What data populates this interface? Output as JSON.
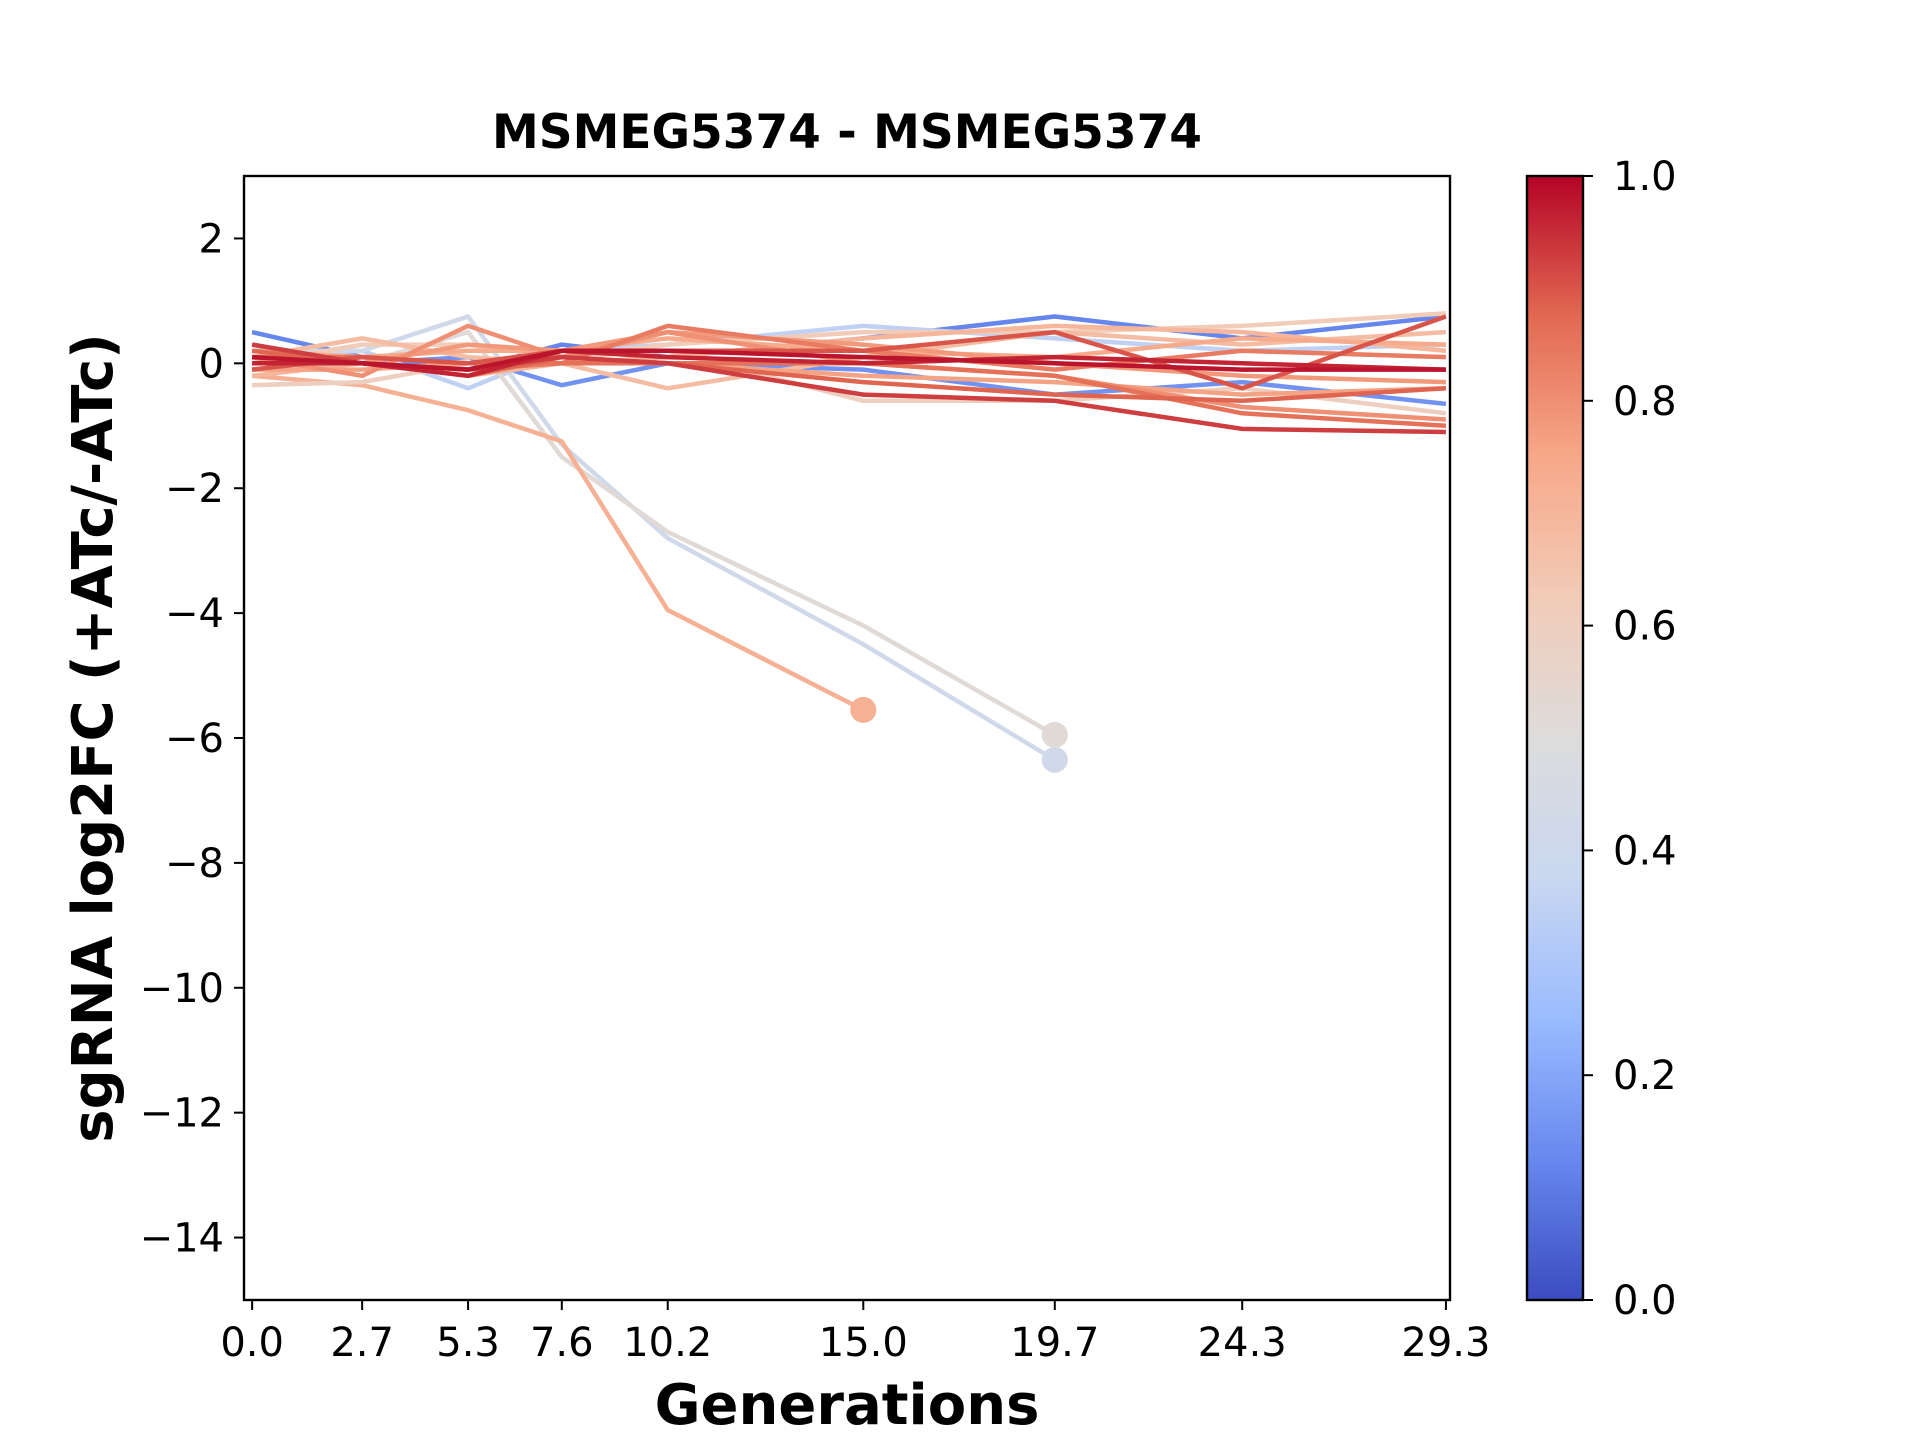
{
  "chart_data": {
    "type": "line",
    "title": "MSMEG5374 - MSMEG5374",
    "xlabel": "Generations",
    "ylabel": "sgRNA log2FC (+ATc/-ATc)",
    "x_ticks": [
      0.0,
      2.7,
      5.3,
      7.6,
      10.2,
      15.0,
      19.7,
      24.3,
      29.3
    ],
    "x_tick_labels": [
      "0.0",
      "2.7",
      "5.3",
      "7.6",
      "10.2",
      "15.0",
      "19.7",
      "24.3",
      "29.3"
    ],
    "y_ticks": [
      2,
      0,
      -2,
      -4,
      -6,
      -8,
      -10,
      -12,
      -14
    ],
    "y_tick_labels": [
      "2",
      "0",
      "−2",
      "−4",
      "−6",
      "−8",
      "−10",
      "−12",
      "−14"
    ],
    "xlim": [
      -0.2,
      29.4
    ],
    "ylim": [
      -15,
      3
    ],
    "grid": false,
    "colormap": "coolwarm",
    "colorbar": {
      "range": [
        0.0,
        1.0
      ],
      "ticks": [
        0.0,
        0.2,
        0.4,
        0.6,
        0.8,
        1.0
      ],
      "tick_labels": [
        "0.0",
        "0.2",
        "0.4",
        "0.6",
        "0.8",
        "1.0"
      ],
      "stops": [
        "#3b4cc0",
        "#6788ee",
        "#9abbff",
        "#c9d7f0",
        "#dddcdc",
        "#f2cbb7",
        "#f7a889",
        "#e26952",
        "#b40426"
      ]
    },
    "series": [
      {
        "color_value": 0.12,
        "x": [
          0.0,
          2.7,
          5.3,
          7.6,
          10.2,
          15.0,
          19.7,
          24.3,
          29.3
        ],
        "y": [
          0.5,
          0.1,
          -0.1,
          0.3,
          0.1,
          0.4,
          0.75,
          0.4,
          0.75
        ],
        "end_marker": false
      },
      {
        "color_value": 0.15,
        "x": [
          0.0,
          2.7,
          5.3,
          7.6,
          10.2,
          15.0,
          19.7,
          24.3,
          29.3
        ],
        "y": [
          0.3,
          0.0,
          0.1,
          -0.35,
          0.0,
          -0.1,
          -0.5,
          -0.3,
          -0.65
        ],
        "end_marker": false
      },
      {
        "color_value": 0.35,
        "x": [
          0.0,
          2.7,
          5.3,
          7.6,
          10.2,
          15.0,
          19.7,
          24.3,
          29.3
        ],
        "y": [
          0.1,
          0.2,
          -0.4,
          0.2,
          0.3,
          0.6,
          0.4,
          0.2,
          0.3
        ],
        "end_marker": false
      },
      {
        "color_value": 0.42,
        "x": [
          0.0,
          2.7,
          5.3,
          7.6,
          10.2,
          15.0,
          19.7
        ],
        "y": [
          0.2,
          0.2,
          0.75,
          -1.3,
          -2.8,
          -4.5,
          -6.35
        ],
        "end_marker": true
      },
      {
        "color_value": 0.52,
        "x": [
          0.0,
          2.7,
          5.3,
          7.6,
          10.2,
          15.0,
          19.7
        ],
        "y": [
          -0.1,
          0.0,
          0.5,
          -1.5,
          -2.7,
          -4.2,
          -5.95
        ],
        "end_marker": true
      },
      {
        "color_value": 0.72,
        "x": [
          0.0,
          2.7,
          5.3,
          7.6,
          10.2,
          15.0
        ],
        "y": [
          -0.2,
          -0.35,
          -0.75,
          -1.25,
          -3.95,
          -5.55
        ],
        "end_marker": true
      },
      {
        "color_value": 0.6,
        "x": [
          0.0,
          2.7,
          5.3,
          7.6,
          10.2,
          15.0,
          19.7,
          24.3,
          29.3
        ],
        "y": [
          -0.35,
          -0.3,
          0.0,
          0.1,
          0.2,
          -0.6,
          -0.6,
          -0.4,
          -0.8
        ],
        "end_marker": false
      },
      {
        "color_value": 0.62,
        "x": [
          0.0,
          2.7,
          5.3,
          7.6,
          10.2,
          15.0,
          19.7,
          24.3,
          29.3
        ],
        "y": [
          0.0,
          0.3,
          0.3,
          0.1,
          0.3,
          0.5,
          0.5,
          0.6,
          0.8
        ],
        "end_marker": false
      },
      {
        "color_value": 0.68,
        "x": [
          0.0,
          2.7,
          5.3,
          7.6,
          10.2,
          15.0,
          19.7,
          24.3,
          29.3
        ],
        "y": [
          0.1,
          0.4,
          0.1,
          0.0,
          -0.4,
          0.1,
          0.5,
          0.3,
          0.5
        ],
        "end_marker": false
      },
      {
        "color_value": 0.7,
        "x": [
          0.0,
          2.7,
          5.3,
          7.6,
          10.2,
          15.0,
          19.7,
          24.3,
          29.3
        ],
        "y": [
          -0.2,
          0.0,
          -0.2,
          0.0,
          0.1,
          0.4,
          0.6,
          0.5,
          0.2
        ],
        "end_marker": false
      },
      {
        "color_value": 0.74,
        "x": [
          0.0,
          2.7,
          5.3,
          7.6,
          10.2,
          15.0,
          19.7,
          24.3,
          29.3
        ],
        "y": [
          0.2,
          0.1,
          0.2,
          0.2,
          0.4,
          0.2,
          0.1,
          0.4,
          0.3
        ],
        "end_marker": false
      },
      {
        "color_value": 0.76,
        "x": [
          0.0,
          2.7,
          5.3,
          7.6,
          10.2,
          15.0,
          19.7,
          24.3,
          29.3
        ],
        "y": [
          -0.1,
          -0.1,
          0.0,
          0.1,
          0.0,
          -0.2,
          -0.3,
          -0.5,
          -0.4
        ],
        "end_marker": false
      },
      {
        "color_value": 0.78,
        "x": [
          0.0,
          2.7,
          5.3,
          7.6,
          10.2,
          15.0,
          19.7,
          24.3,
          29.3
        ],
        "y": [
          0.0,
          0.0,
          0.3,
          0.2,
          0.5,
          0.3,
          0.0,
          -0.2,
          -0.3
        ],
        "end_marker": false
      },
      {
        "color_value": 0.8,
        "x": [
          0.0,
          2.7,
          5.3,
          7.6,
          10.2,
          15.0,
          19.7,
          24.3,
          29.3
        ],
        "y": [
          0.1,
          -0.2,
          0.6,
          0.1,
          0.5,
          0.0,
          -0.2,
          -0.7,
          -0.9
        ],
        "end_marker": false
      },
      {
        "color_value": 0.84,
        "x": [
          0.0,
          2.7,
          5.3,
          7.6,
          10.2,
          15.0,
          19.7,
          24.3,
          29.3
        ],
        "y": [
          0.0,
          0.0,
          -0.1,
          0.0,
          0.6,
          0.2,
          -0.1,
          0.2,
          0.1
        ],
        "end_marker": false
      },
      {
        "color_value": 0.86,
        "x": [
          0.0,
          2.7,
          5.3,
          7.6,
          10.2,
          15.0,
          19.7,
          24.3,
          29.3
        ],
        "y": [
          0.1,
          0.1,
          0.0,
          0.0,
          0.0,
          0.0,
          -0.2,
          -0.8,
          -1.0
        ],
        "end_marker": false
      },
      {
        "color_value": 0.88,
        "x": [
          0.0,
          2.7,
          5.3,
          7.6,
          10.2,
          15.0,
          19.7,
          24.3,
          29.3
        ],
        "y": [
          0.2,
          0.0,
          -0.2,
          0.1,
          0.0,
          -0.3,
          -0.5,
          -0.6,
          -0.4
        ],
        "end_marker": false
      },
      {
        "color_value": 0.9,
        "x": [
          0.0,
          2.7,
          5.3,
          7.6,
          10.2,
          15.0,
          19.7,
          24.3,
          29.3
        ],
        "y": [
          -0.1,
          0.1,
          0.0,
          0.2,
          0.2,
          0.2,
          0.5,
          -0.4,
          0.75
        ],
        "end_marker": false
      },
      {
        "color_value": 0.93,
        "x": [
          0.0,
          2.7,
          5.3,
          7.6,
          10.2,
          15.0,
          19.7,
          24.3,
          29.3
        ],
        "y": [
          0.3,
          0.0,
          -0.1,
          0.1,
          0.0,
          -0.5,
          -0.6,
          -1.05,
          -1.1
        ],
        "end_marker": false
      },
      {
        "color_value": 0.96,
        "x": [
          0.0,
          2.7,
          5.3,
          7.6,
          10.2,
          15.0,
          19.7,
          24.3,
          29.3
        ],
        "y": [
          0.0,
          0.0,
          -0.2,
          0.2,
          0.1,
          0.0,
          0.1,
          0.0,
          -0.1
        ],
        "end_marker": false
      },
      {
        "color_value": 0.98,
        "x": [
          0.0,
          2.7,
          5.3,
          7.6,
          10.2,
          15.0,
          19.7,
          24.3,
          29.3
        ],
        "y": [
          0.1,
          0.0,
          -0.1,
          0.2,
          0.2,
          0.1,
          0.0,
          -0.1,
          -0.1
        ],
        "end_marker": false
      }
    ]
  }
}
